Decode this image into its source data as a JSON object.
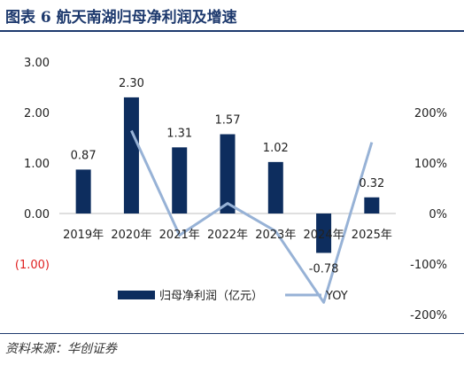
{
  "figure": {
    "title": "图表 6   航天南湖归母净利润及增速",
    "source": "资料来源：华创证券"
  },
  "colors": {
    "bar": "#0d2d5e",
    "line": "#97b2d6",
    "title": "#1e3a6e",
    "negative_tick": "#e02020"
  },
  "chart_data": {
    "type": "bar",
    "categories": [
      "2019年",
      "2020年",
      "2021年",
      "2022年",
      "2023年",
      "2024年",
      "2025年"
    ],
    "series": [
      {
        "name": "归母净利润（亿元）",
        "type": "bar",
        "axis": "left",
        "values": [
          0.87,
          2.3,
          1.31,
          1.57,
          1.02,
          -0.78,
          0.32
        ],
        "labels": [
          "0.87",
          "2.30",
          "1.31",
          "1.57",
          "1.02",
          "-0.78",
          "0.32"
        ]
      },
      {
        "name": "YOY",
        "type": "line",
        "axis": "right",
        "values": [
          null,
          164,
          -43,
          20,
          -35,
          -176,
          141
        ]
      }
    ],
    "left_axis": {
      "ylim": [
        -1,
        3
      ],
      "ticks": [
        3,
        2,
        1,
        0,
        -1
      ],
      "tick_labels": [
        "3.00",
        "2.00",
        "1.00",
        "0.00",
        "(1.00)"
      ]
    },
    "right_axis": {
      "ylim": [
        -200,
        200
      ],
      "ticks": [
        200,
        100,
        0,
        -100,
        -200
      ],
      "tick_labels": [
        "200%",
        "100%",
        "0%",
        "-100%",
        "-200%"
      ]
    },
    "grid": false,
    "legend": "bottom"
  }
}
